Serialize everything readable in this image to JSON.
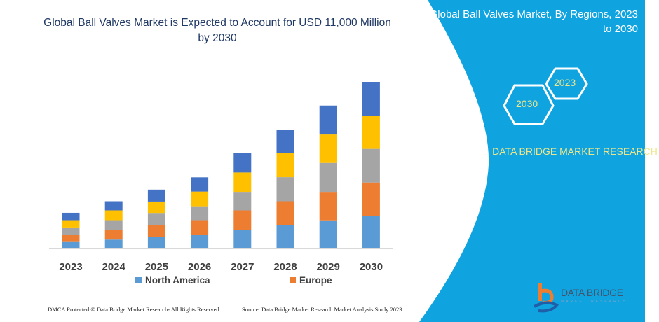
{
  "title": "Global Ball Valves Market is Expected to Account for USD 11,000 Million by 2030",
  "side_panel": {
    "title": "Global Ball Valves Market, By Regions, 2023 to 2030",
    "hex_start": "2023",
    "hex_end": "2030",
    "brand": "DATA BRIDGE MARKET RESEARCH",
    "logo_text": "DATA BRIDGE",
    "logo_subtext": "MARKET RESEARCH",
    "panel_color": "#0fa3e0",
    "accent_text_color": "#efe68a"
  },
  "footer": {
    "copyright": "DMCA Protected © Data Bridge Market Research-  All Rights Reserved.",
    "source": "Source: Data Bridge Market Research  Market Analysis Study 2023"
  },
  "chart_data": {
    "type": "bar",
    "stacked": true,
    "title": "Global Ball Valves Market is Expected to Account for USD 11,000 Million by 2030",
    "categories": [
      "2023",
      "2024",
      "2025",
      "2026",
      "2027",
      "2028",
      "2029",
      "2030"
    ],
    "series": [
      {
        "name": "North America",
        "color": "#5b9bd5",
        "values": [
          430,
          590,
          750,
          910,
          1230,
          1560,
          1860,
          2170
        ]
      },
      {
        "name": "Europe",
        "color": "#ed7d31",
        "values": [
          480,
          650,
          800,
          960,
          1290,
          1560,
          1880,
          2190
        ]
      },
      {
        "color": "#a5a5a5",
        "values": [
          480,
          630,
          800,
          920,
          1220,
          1590,
          1910,
          2220
        ]
      },
      {
        "color": "#ffc000",
        "values": [
          480,
          650,
          750,
          970,
          1280,
          1600,
          1880,
          2200
        ]
      },
      {
        "color": "#4472c4",
        "values": [
          490,
          600,
          790,
          940,
          1280,
          1540,
          1910,
          2220
        ]
      }
    ],
    "ylim": [
      0,
      11000
    ],
    "y_axis_visible": false,
    "grid": false,
    "legend": "bottom"
  }
}
